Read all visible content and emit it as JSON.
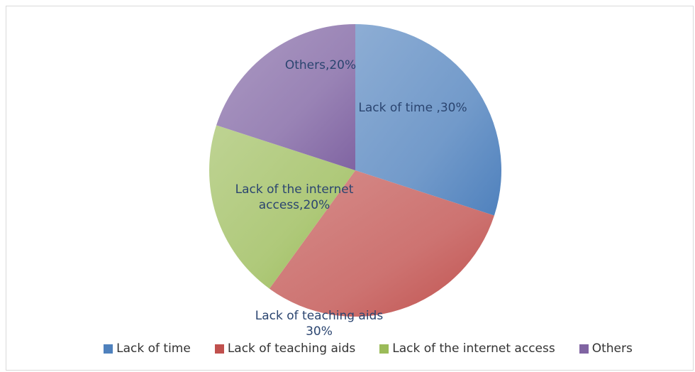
{
  "chart_data": {
    "type": "pie",
    "categories": [
      "Lack of time",
      "Lack of teaching aids",
      "Lack of the internet access",
      "Others"
    ],
    "values": [
      30,
      30,
      20,
      20
    ],
    "value_labels": [
      "Lack of time ,30%",
      "Lack of teaching aids 30%",
      "Lack of the internet access,20%",
      "Others,20%"
    ],
    "colors": [
      "#4f81bd",
      "#c0504d",
      "#9bbb59",
      "#8064a2"
    ],
    "legend": "bottom"
  }
}
